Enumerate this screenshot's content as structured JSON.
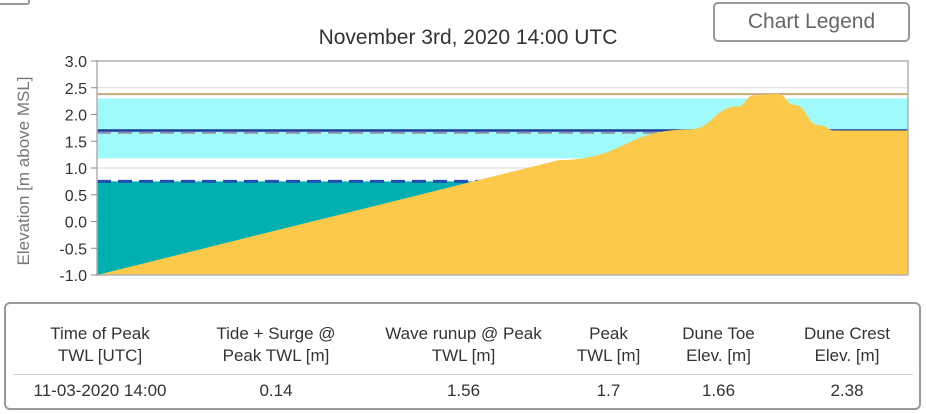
{
  "legend_button": {
    "label": "Chart Legend"
  },
  "chart_data": {
    "type": "area",
    "title": "November 3rd, 2020 14:00 UTC",
    "ylabel": "Elevation [m above MSL]",
    "xlabel": "",
    "ylim": [
      -1.0,
      3.0
    ],
    "yticks": [
      "3.0",
      "2.5",
      "2.0",
      "1.5",
      "1.0",
      "0.5",
      "0.0",
      "-0.5",
      "-1.0"
    ],
    "grid": true,
    "levels": {
      "upper_line": 2.38,
      "runup_band": [
        1.18,
        2.3
      ],
      "peak_twl_line": 1.7,
      "band_dashed_line": 1.66,
      "water_level": 0.75,
      "water_dashed_line": 0.75
    },
    "profile": {
      "x": [
        0,
        0.57,
        0.73,
        0.79,
        0.81,
        0.84,
        0.86,
        0.89,
        0.91,
        1.0
      ],
      "y": [
        -1.0,
        1.15,
        1.72,
        2.15,
        2.36,
        2.38,
        2.18,
        1.8,
        1.7,
        1.7
      ]
    },
    "colors": {
      "sand": "#fcc94a",
      "water": "#00b0b0",
      "runup_band": "#a0fafa",
      "line_dark": "#1c3c96",
      "line_blue": "#1f4fb3",
      "line_tan": "#c9a97a"
    }
  },
  "table": {
    "headers": [
      [
        "Time of Peak",
        "TWL [UTC]"
      ],
      [
        "Tide + Surge @",
        "Peak TWL [m]"
      ],
      [
        "Wave runup @ Peak",
        "TWL [m]"
      ],
      [
        "Peak",
        "TWL [m]"
      ],
      [
        "Dune Toe",
        "Elev. [m]"
      ],
      [
        "Dune Crest",
        "Elev. [m]"
      ]
    ],
    "row": [
      "11-03-2020 14:00",
      "0.14",
      "1.56",
      "1.7",
      "1.66",
      "2.38"
    ]
  }
}
